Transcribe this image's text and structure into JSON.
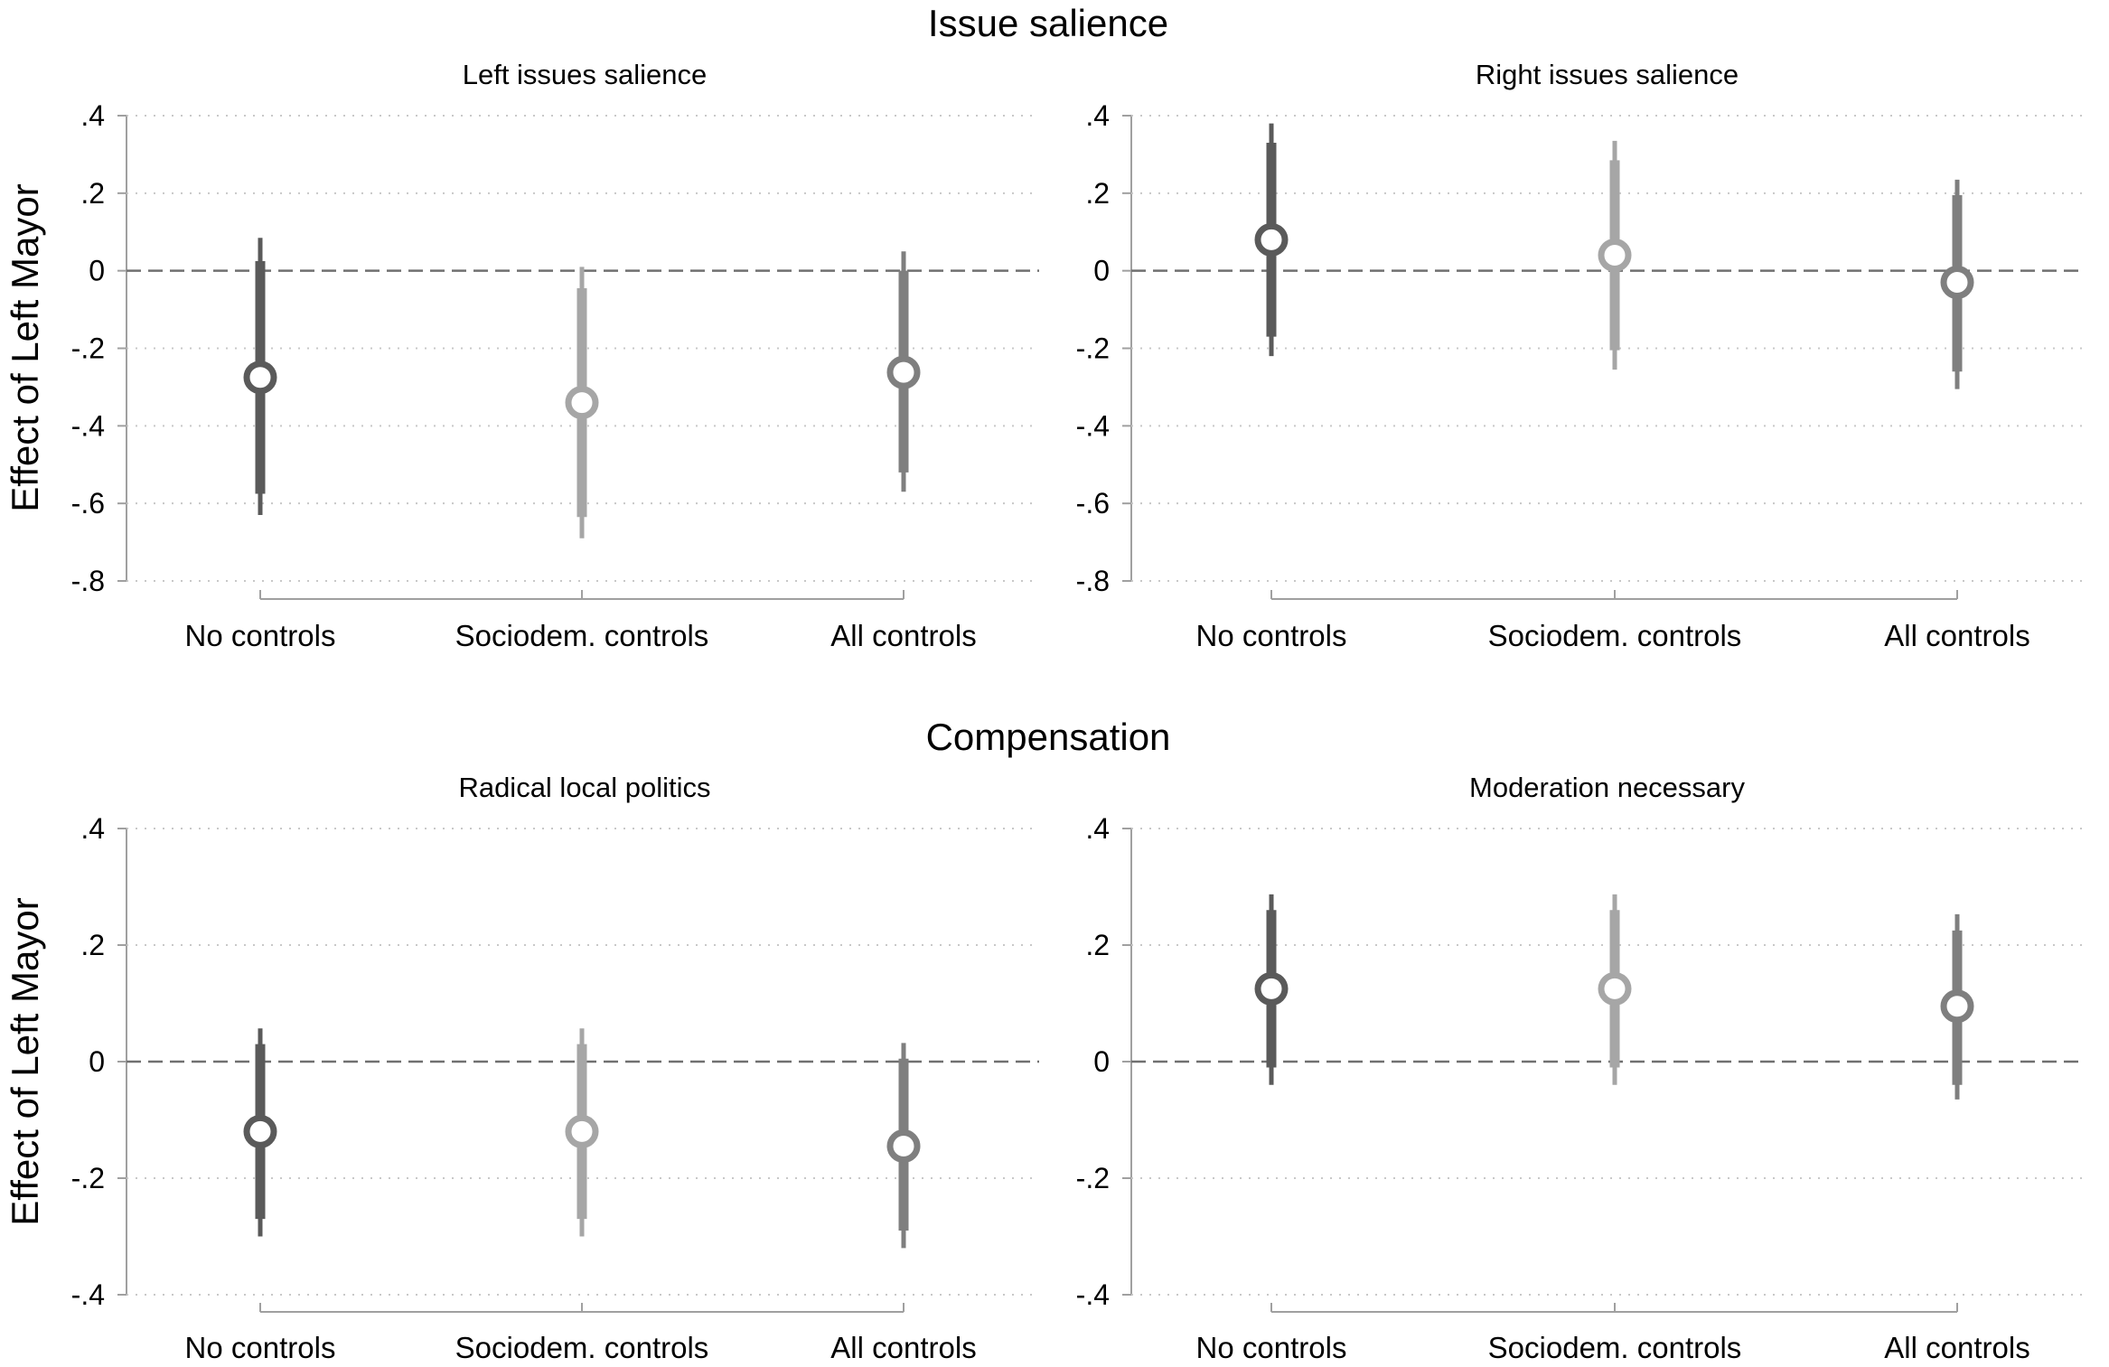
{
  "colors": {
    "no_controls": "#5a5a5a",
    "sociodem_controls": "#a6a6a6",
    "all_controls": "#7f7f7f",
    "axis": "#a0a0a0",
    "grid": "#c8c8c8",
    "zero_line": "#707070"
  },
  "groups": [
    {
      "title": "Issue salience"
    },
    {
      "title": "Compensation"
    }
  ],
  "chart_data": [
    {
      "type": "scatter",
      "title": "Left issues salience",
      "group": "Issue salience",
      "ylabel": "Effect of Left Mayor",
      "categories": [
        "No controls",
        "Sociodem. controls",
        "All controls"
      ],
      "ylim": [
        -0.8,
        0.4
      ],
      "yticks": [
        0.4,
        0.2,
        0,
        -0.2,
        -0.4,
        -0.6,
        -0.8
      ],
      "ytick_labels": [
        ".4",
        ".2",
        "0",
        "-.2",
        "-.4",
        "-.6",
        "-.8"
      ],
      "zero_label": "0",
      "grid": true,
      "estimates": [
        -0.275,
        -0.34,
        -0.262
      ],
      "ci90": [
        [
          -0.575,
          0.025
        ],
        [
          -0.635,
          -0.045
        ],
        [
          -0.52,
          0.0
        ]
      ],
      "ci95": [
        [
          -0.63,
          0.085
        ],
        [
          -0.69,
          0.01
        ],
        [
          -0.57,
          0.05
        ]
      ]
    },
    {
      "type": "scatter",
      "title": "Right issues salience",
      "group": "Issue salience",
      "categories": [
        "No controls",
        "Sociodem. controls",
        "All controls"
      ],
      "ylim": [
        -0.8,
        0.4
      ],
      "yticks": [
        0.4,
        0.2,
        0,
        -0.2,
        -0.4,
        -0.6,
        -0.8
      ],
      "ytick_labels": [
        ".4",
        ".2",
        "0",
        "-.2",
        "-.4",
        "-.6",
        "-.8"
      ],
      "zero_label": "0",
      "grid": true,
      "estimates": [
        0.08,
        0.04,
        -0.03
      ],
      "ci90": [
        [
          -0.17,
          0.33
        ],
        [
          -0.205,
          0.285
        ],
        [
          -0.26,
          0.195
        ]
      ],
      "ci95": [
        [
          -0.22,
          0.38
        ],
        [
          -0.255,
          0.335
        ],
        [
          -0.305,
          0.235
        ]
      ]
    },
    {
      "type": "scatter",
      "title": "Radical local politics",
      "group": "Compensation",
      "ylabel": "Effect of Left Mayor",
      "categories": [
        "No controls",
        "Sociodem. controls",
        "All controls"
      ],
      "ylim": [
        -0.4,
        0.4
      ],
      "yticks": [
        0.4,
        0.2,
        0,
        -0.2,
        -0.4
      ],
      "ytick_labels": [
        ".4",
        ".2",
        "0",
        "-.2",
        "-.4"
      ],
      "zero_label": "0",
      "grid": true,
      "estimates": [
        -0.12,
        -0.12,
        -0.145
      ],
      "ci90": [
        [
          -0.27,
          0.03
        ],
        [
          -0.27,
          0.03
        ],
        [
          -0.29,
          0.005
        ]
      ],
      "ci95": [
        [
          -0.3,
          0.057
        ],
        [
          -0.3,
          0.057
        ],
        [
          -0.32,
          0.032
        ]
      ]
    },
    {
      "type": "scatter",
      "title": "Moderation necessary",
      "group": "Compensation",
      "categories": [
        "No controls",
        "Sociodem. controls",
        "All controls"
      ],
      "ylim": [
        -0.4,
        0.4
      ],
      "yticks": [
        0.4,
        0.2,
        0,
        -0.2,
        -0.4
      ],
      "ytick_labels": [
        ".4",
        ".2",
        "0",
        "-.2",
        "-.4"
      ],
      "zero_label": "0",
      "grid": true,
      "estimates": [
        0.125,
        0.125,
        0.095
      ],
      "ci90": [
        [
          -0.01,
          0.26
        ],
        [
          -0.01,
          0.26
        ],
        [
          -0.04,
          0.225
        ]
      ],
      "ci95": [
        [
          -0.04,
          0.287
        ],
        [
          -0.04,
          0.287
        ],
        [
          -0.065,
          0.253
        ]
      ]
    }
  ]
}
